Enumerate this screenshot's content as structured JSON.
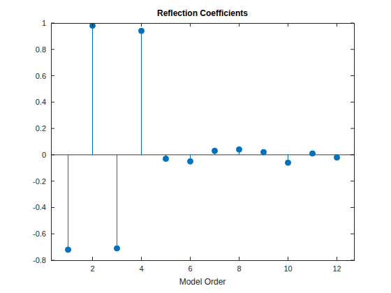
{
  "chart_data": {
    "type": "stem",
    "title": "Reflection Coefficients",
    "x_label": "Model Order",
    "x": [
      1,
      2,
      3,
      4,
      5,
      6,
      7,
      8,
      9,
      10,
      11,
      12
    ],
    "values": [
      -0.72,
      0.98,
      -0.71,
      0.94,
      -0.03,
      -0.05,
      0.03,
      0.04,
      0.02,
      -0.06,
      0.01,
      -0.02
    ],
    "color": "#0072bd",
    "marker": "circle",
    "xlim": [
      0.3,
      12.7
    ],
    "xticks": [
      2,
      4,
      6,
      8,
      10,
      12
    ],
    "ylim": [
      -0.8,
      1
    ],
    "yticks": [
      -0.8,
      -0.6,
      -0.4,
      -0.2,
      0,
      0.2,
      0.4,
      0.6,
      0.8,
      1
    ],
    "grid": false
  }
}
